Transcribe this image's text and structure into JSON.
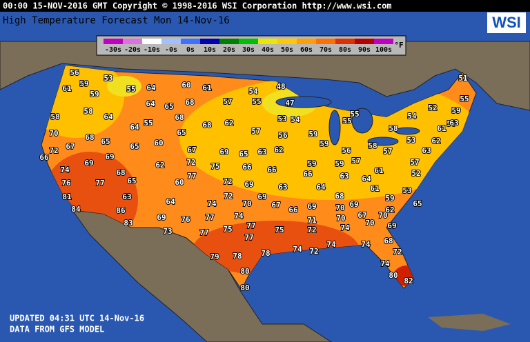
{
  "header": "00:00 15-NOV-2016 GMT Copyright © 1998-2016 WSI Corporation  http://www.wsi.com",
  "title": "High Temperature Forecast   Mon 14-Nov-16",
  "logo": "WSI",
  "legend": {
    "unit": "°F",
    "items": [
      {
        "label": "-30s",
        "color": "#c000c0"
      },
      {
        "label": "-20s",
        "color": "#e070e0"
      },
      {
        "label": "-10s",
        "color": "#ffffff"
      },
      {
        "label": "-0s",
        "color": "#a0c0ff"
      },
      {
        "label": "0s",
        "color": "#4070ff"
      },
      {
        "label": "10s",
        "color": "#0000b0"
      },
      {
        "label": "20s",
        "color": "#008000"
      },
      {
        "label": "30s",
        "color": "#00c000"
      },
      {
        "label": "40s",
        "color": "#e8e800"
      },
      {
        "label": "50s",
        "color": "#ffc800"
      },
      {
        "label": "60s",
        "color": "#ffa000"
      },
      {
        "label": "70s",
        "color": "#ff7000"
      },
      {
        "label": "80s",
        "color": "#e03000"
      },
      {
        "label": "90s",
        "color": "#b80000"
      },
      {
        "label": "100s",
        "color": "#c000c0"
      }
    ]
  },
  "temperatures": [
    "56",
    "59",
    "53",
    "61",
    "59",
    "55",
    "64",
    "60",
    "61",
    "54",
    "48",
    "51",
    "55",
    "64",
    "65",
    "68",
    "57",
    "55",
    "47",
    "58",
    "64",
    "68",
    "52",
    "59",
    "58",
    "55",
    "68",
    "62",
    "53",
    "54",
    "55",
    "55",
    "54",
    "56",
    "63",
    "61",
    "70",
    "64",
    "65",
    "57",
    "56",
    "59",
    "58",
    "68",
    "65",
    "60",
    "59",
    "53",
    "62",
    "72",
    "67",
    "65",
    "67",
    "69",
    "65",
    "63",
    "62",
    "56",
    "58",
    "57",
    "63",
    "66",
    "69",
    "69",
    "62",
    "72",
    "75",
    "66",
    "66",
    "59",
    "59",
    "57",
    "57",
    "74",
    "68",
    "77",
    "66",
    "63",
    "61",
    "52",
    "76",
    "77",
    "65",
    "60",
    "72",
    "69",
    "63",
    "64",
    "64",
    "61",
    "53",
    "81",
    "63",
    "64",
    "74",
    "72",
    "70",
    "69",
    "68",
    "59",
    "65",
    "84",
    "86",
    "67",
    "66",
    "69",
    "70",
    "69",
    "62",
    "69",
    "76",
    "77",
    "74",
    "71",
    "70",
    "67",
    "70",
    "70",
    "83",
    "73",
    "77",
    "75",
    "77",
    "75",
    "72",
    "74",
    "69",
    "77",
    "68",
    "74",
    "74",
    "74",
    "72",
    "72",
    "79",
    "78",
    "78",
    "74",
    "80",
    "80",
    "82",
    "80"
  ],
  "footer": [
    "UPDATED 04:31 UTC 14-Nov-16",
    "DATA FROM GFS MODEL"
  ]
}
